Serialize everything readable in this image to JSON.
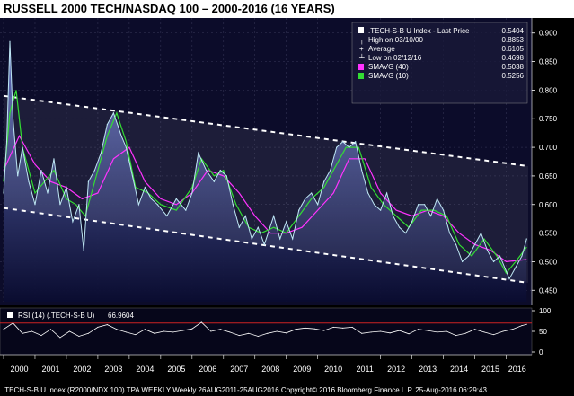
{
  "title": "RUSSELL 2000 TECH/NASDAQ 100 – 2000-2016 (16 YEARS)",
  "footer": ".TECH-S-B U Index (R2000/NDX 100) TPA WEEKLY  Weekly 26AUG2011-25AUG2016 Copyright© 2016 Bloomberg Finance L.P.  25-Aug-2016 06:29:43",
  "colors": {
    "price": "#bfe8f5",
    "smavg40": "#ff33ff",
    "smavg10": "#33dd33",
    "rsi": "#ffffff",
    "rsi_ref": "#cc2222",
    "channel": "#ffffff"
  },
  "legend": {
    "rows": [
      {
        "label": ".TECH-S-B U Index - Last Price",
        "value": "0.5404",
        "marker": "white-box"
      },
      {
        "label": "High on 03/10/00",
        "value": "0.8853",
        "marker": "high-tick"
      },
      {
        "label": "Average",
        "value": "0.6105",
        "marker": "avg-tick"
      },
      {
        "label": "Low on 02/12/16",
        "value": "0.4698",
        "marker": "low-tick"
      },
      {
        "label": "SMAVG (40)",
        "value": "0.5038",
        "marker": "magenta-box"
      },
      {
        "label": "SMAVG (10)",
        "value": "0.5256",
        "marker": "green-box"
      }
    ]
  },
  "rsi_legend": {
    "label": "RSI (14) (.TECH-S-B U)",
    "value": "66.9604"
  },
  "chart_data": [
    {
      "type": "line",
      "panel": "price",
      "ylim": [
        0.43,
        0.92
      ],
      "y_ticks": [
        "0.900",
        "0.850",
        "0.800",
        "0.750",
        "0.700",
        "0.650",
        "0.600",
        "0.550",
        "0.500",
        "0.450"
      ],
      "x_ticks": [
        "2000",
        "2001",
        "2002",
        "2003",
        "2004",
        "2005",
        "2006",
        "2007",
        "2008",
        "2009",
        "2010",
        "2011",
        "2012",
        "2013",
        "2014",
        "2015",
        "2016"
      ],
      "x_range": [
        2000.0,
        2016.7
      ],
      "grid": true,
      "series": [
        {
          "name": ".TECH-S-B U Index - Last Price",
          "x": [
            2000.0,
            2000.1,
            2000.2,
            2000.3,
            2000.45,
            2000.6,
            2000.8,
            2001.0,
            2001.2,
            2001.4,
            2001.6,
            2001.8,
            2002.0,
            2002.2,
            2002.4,
            2002.55,
            2002.7,
            2002.9,
            2003.1,
            2003.3,
            2003.5,
            2003.75,
            2003.9,
            2004.1,
            2004.3,
            2004.5,
            2004.7,
            2004.9,
            2005.2,
            2005.5,
            2005.8,
            2006.0,
            2006.2,
            2006.45,
            2006.7,
            2006.9,
            2007.1,
            2007.3,
            2007.5,
            2007.7,
            2007.9,
            2008.1,
            2008.3,
            2008.6,
            2008.8,
            2009.0,
            2009.2,
            2009.4,
            2009.6,
            2009.8,
            2010.0,
            2010.2,
            2010.4,
            2010.6,
            2010.8,
            2011.0,
            2011.2,
            2011.4,
            2011.6,
            2011.8,
            2012.0,
            2012.2,
            2012.4,
            2012.6,
            2012.8,
            2013.0,
            2013.2,
            2013.4,
            2013.6,
            2013.8,
            2014.0,
            2014.2,
            2014.4,
            2014.6,
            2014.8,
            2015.0,
            2015.2,
            2015.4,
            2015.6,
            2015.8,
            2016.1,
            2016.3,
            2016.5,
            2016.65
          ],
          "y": [
            0.62,
            0.71,
            0.885,
            0.75,
            0.65,
            0.7,
            0.64,
            0.6,
            0.66,
            0.62,
            0.68,
            0.6,
            0.63,
            0.57,
            0.6,
            0.52,
            0.64,
            0.66,
            0.69,
            0.74,
            0.76,
            0.72,
            0.7,
            0.65,
            0.6,
            0.63,
            0.61,
            0.6,
            0.58,
            0.61,
            0.59,
            0.62,
            0.69,
            0.66,
            0.64,
            0.66,
            0.65,
            0.6,
            0.56,
            0.58,
            0.54,
            0.56,
            0.53,
            0.58,
            0.54,
            0.57,
            0.54,
            0.59,
            0.61,
            0.62,
            0.6,
            0.64,
            0.66,
            0.7,
            0.71,
            0.7,
            0.71,
            0.66,
            0.62,
            0.6,
            0.59,
            0.62,
            0.58,
            0.56,
            0.55,
            0.57,
            0.6,
            0.6,
            0.58,
            0.61,
            0.59,
            0.55,
            0.53,
            0.5,
            0.51,
            0.53,
            0.55,
            0.52,
            0.5,
            0.51,
            0.47,
            0.49,
            0.51,
            0.54
          ]
        },
        {
          "name": "SMAVG (40)",
          "x": [
            2000.0,
            2000.5,
            2001.0,
            2001.5,
            2002.0,
            2002.5,
            2003.0,
            2003.5,
            2004.0,
            2004.5,
            2005.0,
            2005.5,
            2006.0,
            2006.5,
            2007.0,
            2007.5,
            2008.0,
            2008.5,
            2009.0,
            2009.5,
            2010.0,
            2010.5,
            2011.0,
            2011.5,
            2012.0,
            2012.5,
            2013.0,
            2013.5,
            2014.0,
            2014.5,
            2015.0,
            2015.5,
            2016.0,
            2016.65
          ],
          "y": [
            0.66,
            0.72,
            0.67,
            0.64,
            0.63,
            0.61,
            0.62,
            0.68,
            0.7,
            0.64,
            0.61,
            0.6,
            0.62,
            0.66,
            0.65,
            0.62,
            0.58,
            0.55,
            0.55,
            0.56,
            0.59,
            0.62,
            0.68,
            0.68,
            0.62,
            0.59,
            0.58,
            0.59,
            0.58,
            0.55,
            0.53,
            0.52,
            0.5,
            0.5038
          ]
        },
        {
          "name": "SMAVG (10)",
          "x": [
            2000.0,
            2000.2,
            2000.4,
            2000.6,
            2001.0,
            2001.3,
            2001.6,
            2002.0,
            2002.3,
            2002.6,
            2003.0,
            2003.3,
            2003.6,
            2003.9,
            2004.2,
            2004.6,
            2005.0,
            2005.5,
            2006.0,
            2006.3,
            2006.7,
            2007.0,
            2007.4,
            2007.8,
            2008.2,
            2008.6,
            2009.0,
            2009.4,
            2009.8,
            2010.2,
            2010.6,
            2010.9,
            2011.3,
            2011.7,
            2012.1,
            2012.5,
            2012.9,
            2013.3,
            2013.7,
            2014.1,
            2014.5,
            2014.9,
            2015.3,
            2015.7,
            2016.0,
            2016.3,
            2016.65
          ],
          "y": [
            0.64,
            0.76,
            0.8,
            0.7,
            0.62,
            0.64,
            0.66,
            0.61,
            0.6,
            0.58,
            0.66,
            0.72,
            0.76,
            0.71,
            0.63,
            0.62,
            0.6,
            0.59,
            0.63,
            0.68,
            0.65,
            0.66,
            0.6,
            0.56,
            0.55,
            0.56,
            0.55,
            0.58,
            0.61,
            0.63,
            0.67,
            0.7,
            0.7,
            0.63,
            0.6,
            0.58,
            0.56,
            0.59,
            0.59,
            0.58,
            0.53,
            0.51,
            0.54,
            0.51,
            0.48,
            0.5,
            0.5256
          ]
        }
      ],
      "channel": {
        "upper": [
          [
            2000.0,
            0.79
          ],
          [
            2016.7,
            0.667
          ]
        ],
        "lower": [
          [
            2000.0,
            0.594
          ],
          [
            2016.7,
            0.463
          ]
        ]
      }
    },
    {
      "type": "line",
      "panel": "rsi",
      "ylim": [
        0,
        100
      ],
      "y_ticks": [
        "100",
        "50",
        "0"
      ],
      "reference_lines": [
        70
      ],
      "series": [
        {
          "name": "RSI (14) (.TECH-S-B U)",
          "x": [
            2000.0,
            2000.3,
            2000.6,
            2000.9,
            2001.2,
            2001.5,
            2001.8,
            2002.1,
            2002.4,
            2002.7,
            2003.0,
            2003.3,
            2003.6,
            2003.9,
            2004.2,
            2004.5,
            2004.8,
            2005.1,
            2005.4,
            2005.7,
            2006.0,
            2006.3,
            2006.6,
            2006.9,
            2007.2,
            2007.5,
            2007.8,
            2008.1,
            2008.4,
            2008.7,
            2009.0,
            2009.3,
            2009.6,
            2009.9,
            2010.2,
            2010.5,
            2010.8,
            2011.1,
            2011.4,
            2011.7,
            2012.0,
            2012.3,
            2012.6,
            2012.9,
            2013.2,
            2013.5,
            2013.8,
            2014.1,
            2014.4,
            2014.7,
            2015.0,
            2015.3,
            2015.6,
            2015.9,
            2016.2,
            2016.5,
            2016.65
          ],
          "y": [
            55,
            70,
            45,
            50,
            40,
            55,
            35,
            50,
            38,
            45,
            60,
            66,
            55,
            48,
            42,
            55,
            45,
            50,
            48,
            52,
            56,
            72,
            50,
            55,
            48,
            40,
            45,
            38,
            45,
            50,
            46,
            55,
            58,
            56,
            52,
            60,
            58,
            60,
            45,
            48,
            50,
            46,
            52,
            44,
            55,
            52,
            48,
            50,
            40,
            45,
            55,
            48,
            42,
            50,
            55,
            64,
            66.96
          ]
        }
      ]
    }
  ]
}
